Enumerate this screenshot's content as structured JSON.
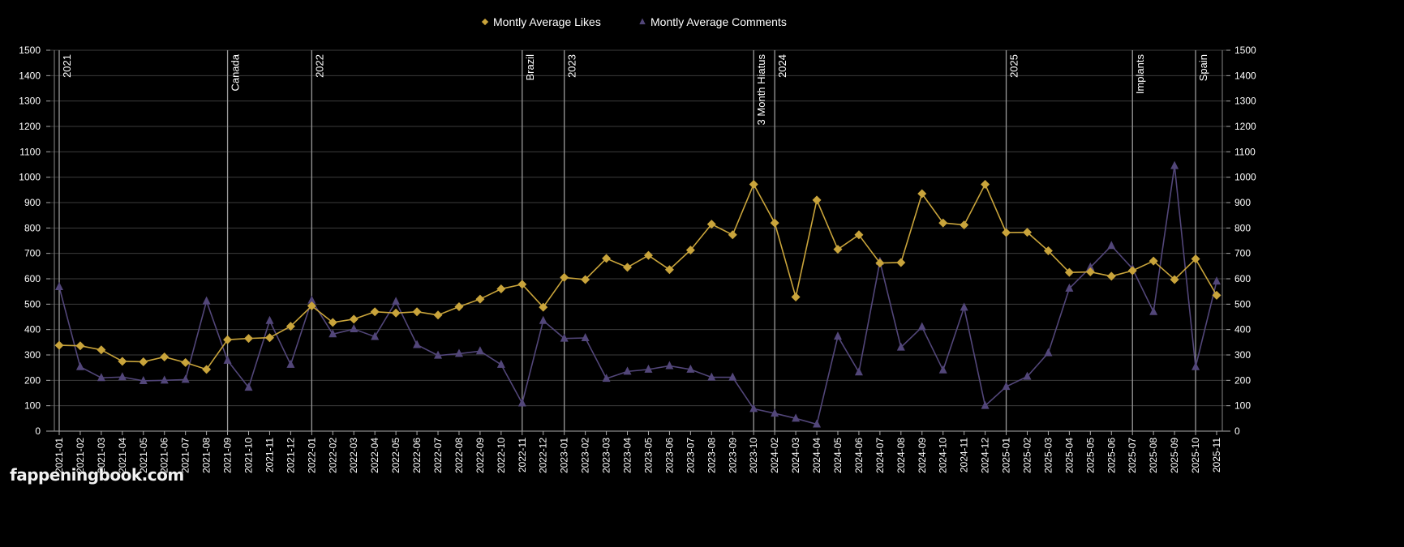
{
  "chart_data": {
    "type": "line",
    "title": "",
    "xlabel": "",
    "ylabel": "",
    "ylim": [
      0,
      1500
    ],
    "y_ticks": [
      0,
      100,
      200,
      300,
      400,
      500,
      600,
      700,
      800,
      900,
      1000,
      1100,
      1200,
      1300,
      1400,
      1500
    ],
    "y_axis_mirrored_right": true,
    "grid": true,
    "legend_position": "top",
    "categories": [
      "2021-01",
      "2021-02",
      "2021-03",
      "2021-04",
      "2021-05",
      "2021-06",
      "2021-07",
      "2021-08",
      "2021-09",
      "2021-10",
      "2021-11",
      "2021-12",
      "2022-01",
      "2022-02",
      "2022-03",
      "2022-04",
      "2022-05",
      "2022-06",
      "2022-07",
      "2022-08",
      "2022-09",
      "2022-10",
      "2022-11",
      "2022-12",
      "2023-01",
      "2023-02",
      "2023-03",
      "2023-04",
      "2023-05",
      "2023-06",
      "2023-07",
      "2023-08",
      "2023-09",
      "2023-10",
      "2024-02",
      "2024-03",
      "2024-04",
      "2024-05",
      "2024-06",
      "2024-07",
      "2024-08",
      "2024-09",
      "2024-10",
      "2024-11",
      "2024-12",
      "2025-01",
      "2025-02",
      "2025-03",
      "2025-04",
      "2025-05",
      "2025-06",
      "2025-07",
      "2025-08",
      "2025-09",
      "2025-10",
      "2025-11"
    ],
    "series": [
      {
        "name": "Montly Average Likes",
        "color": "#c9a43b",
        "marker": "diamond",
        "values": [
          338,
          336,
          320,
          275,
          273,
          292,
          270,
          243,
          360,
          365,
          368,
          413,
          493,
          428,
          441,
          470,
          465,
          470,
          457,
          490,
          520,
          560,
          578,
          488,
          605,
          597,
          680,
          645,
          692,
          636,
          713,
          815,
          773,
          972,
          820,
          528,
          910,
          716,
          773,
          662,
          664,
          935,
          820,
          812,
          972,
          782,
          783,
          710,
          625,
          627,
          610,
          632,
          670,
          597,
          678,
          535
        ]
      },
      {
        "name": "Montly Average Comments",
        "color": "#524679",
        "marker": "triangle",
        "values": [
          568,
          253,
          210,
          213,
          198,
          200,
          203,
          512,
          278,
          172,
          435,
          262,
          515,
          382,
          402,
          372,
          510,
          340,
          298,
          305,
          315,
          262,
          110,
          435,
          365,
          367,
          207,
          235,
          243,
          257,
          243,
          212,
          212,
          88,
          70,
          50,
          27,
          373,
          232,
          668,
          330,
          410,
          240,
          487,
          100,
          175,
          215,
          308,
          562,
          645,
          730,
          640,
          470,
          1045,
          253,
          590
        ]
      }
    ],
    "annotations": [
      {
        "label": "2021",
        "at": "2021-01"
      },
      {
        "label": "Canada",
        "at": "2021-09"
      },
      {
        "label": "2022",
        "at": "2022-01"
      },
      {
        "label": "Brazil",
        "at": "2022-11"
      },
      {
        "label": "2023",
        "at": "2023-01"
      },
      {
        "label": "3 Month Hiatus",
        "at": "2023-10"
      },
      {
        "label": "2024",
        "at": "2024-02"
      },
      {
        "label": "2025",
        "at": "2025-01"
      },
      {
        "label": "Implants",
        "at": "2025-07"
      },
      {
        "label": "Spain",
        "at": "2025-10"
      }
    ]
  },
  "watermark": "fappeningbook.com"
}
